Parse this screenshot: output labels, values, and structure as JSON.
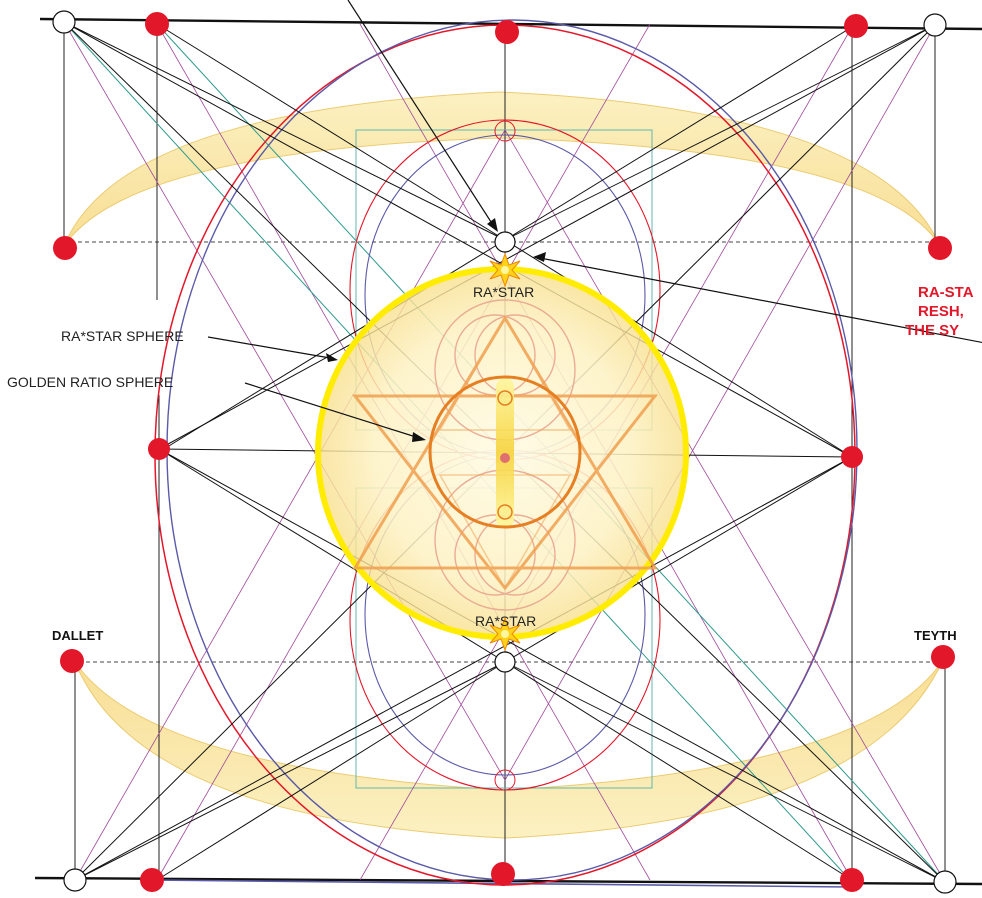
{
  "labels": {
    "ra_star_top": "RA*STAR",
    "ra_star_bottom": "RA*STAR",
    "ra_star_sphere": "RA*STAR SPHERE",
    "golden_ratio_sphere": "GOLDEN RATIO SPHERE",
    "dallet": "DALLET",
    "teyth": "TEYTH",
    "red_note_line1": "RA-STA",
    "red_note_line2": "RESH,",
    "red_note_line3": "THE SY"
  },
  "colors": {
    "red_dot": "#e3172a",
    "yellow_sphere": "#ffec00",
    "crescent_fill": "#fbe9a6",
    "red_circle": "#e3172a",
    "blue_circle": "#5a5aa8",
    "teal_line": "#2f9a8c",
    "purple_line": "#a04a9a",
    "orange_star": "#f0a050",
    "orange_circle": "#e67e22",
    "red_text": "#e3172a"
  }
}
